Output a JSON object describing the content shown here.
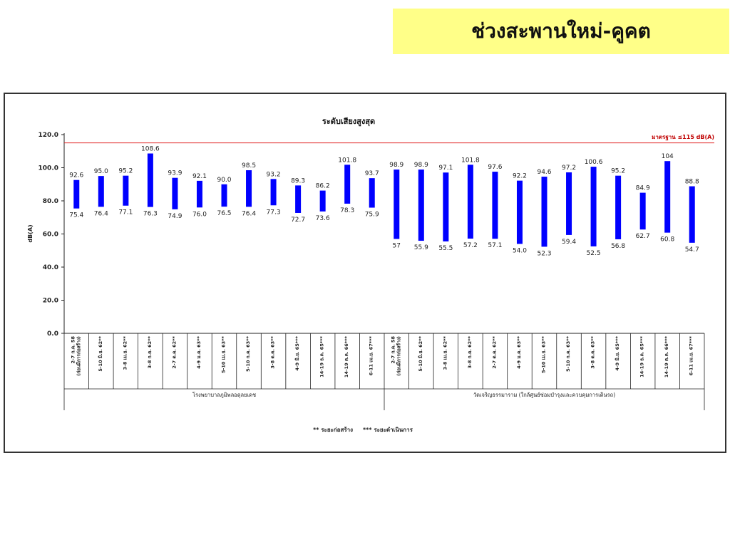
{
  "slide": {
    "title": "ช่วงสะพานใหม่-คูคต"
  },
  "colors": {
    "bar": "#0000ff",
    "standard_line": "#e02020",
    "title_background": "#ffff88"
  },
  "chart_data": {
    "type": "bar",
    "subtype": "floating-range",
    "title": "ระดับเสียงสูงสุด",
    "ylabel": "dB(A)",
    "ylim": [
      0,
      120
    ],
    "yticks": [
      "0.0",
      "20.0",
      "40.0",
      "60.0",
      "80.0",
      "100.0",
      "120.0"
    ],
    "standard": {
      "value": 115,
      "label": "มาตรฐาน ≤115 dB(A)"
    },
    "categories": [
      [
        "2-7 ก.ค. 58",
        "(ก่อนมีการก่อสร้าง)"
      ],
      [
        "5-10 มิ.ย. 62**"
      ],
      [
        "3-8 เม.ย. 62**"
      ],
      [
        "3-8 ก.ค. 62**"
      ],
      [
        "2-7 ต.ค. 62**"
      ],
      [
        "4-9 ม.ค. 63**"
      ],
      [
        "5-10 เม.ย. 63**"
      ],
      [
        "5-10 ก.ค. 63**"
      ],
      [
        "3-8 ต.ค. 63**"
      ],
      [
        "4-9 มิ.ย. 65***"
      ],
      [
        "14-19 ธ.ค. 65***"
      ],
      [
        "14-19 ต.ค. 66***"
      ],
      [
        "6-11 เม.ย. 67***"
      ],
      [
        "2-7 ก.ค. 58",
        "(ก่อนมีการก่อสร้าง)"
      ],
      [
        "5-10 มิ.ย. 62**"
      ],
      [
        "3-8 เม.ย. 62**"
      ],
      [
        "3-8 ก.ค. 62**"
      ],
      [
        "2-7 ต.ค. 62**"
      ],
      [
        "4-9 ม.ค. 63**"
      ],
      [
        "5-10 เม.ย. 63**"
      ],
      [
        "5-10 ก.ค. 63**"
      ],
      [
        "3-8 ต.ค. 63**"
      ],
      [
        "4-9 มิ.ย. 65***"
      ],
      [
        "14-19 ธ.ค. 65***"
      ],
      [
        "14-19 ต.ค. 66***"
      ],
      [
        "6-11 เม.ย. 67***"
      ]
    ],
    "groups": [
      {
        "label": "โรงพยาบาลภูมิพลอดุลยเดช",
        "start": 0,
        "end": 12
      },
      {
        "label": "วัดเจริญธรรมาราม (ใกล้ศูนย์ซ่อมบำรุงและควบคุมการเดินรถ)",
        "start": 13,
        "end": 25
      }
    ],
    "max_values": [
      92.6,
      95.0,
      95.2,
      108.6,
      93.9,
      92.1,
      90.0,
      98.5,
      93.2,
      89.3,
      86.2,
      101.8,
      93.7,
      98.9,
      98.9,
      97.1,
      101.8,
      97.6,
      92.2,
      94.6,
      97.2,
      100.6,
      95.2,
      84.9,
      104,
      88.8
    ],
    "min_values": [
      75.4,
      76.4,
      77.1,
      76.3,
      74.9,
      76.0,
      76.5,
      76.4,
      77.3,
      72.7,
      73.6,
      78.3,
      75.9,
      57,
      55.9,
      55.5,
      57.2,
      57.1,
      54.0,
      52.3,
      59.4,
      52.5,
      56.8,
      62.7,
      60.8,
      54.7
    ],
    "max_labels": [
      "92.6",
      "95.0",
      "95.2",
      "108.6",
      "93.9",
      "92.1",
      "90.0",
      "98.5",
      "93.2",
      "89.3",
      "86.2",
      "101.8",
      "93.7",
      "98.9",
      "98.9",
      "97.1",
      "101.8",
      "97.6",
      "92.2",
      "94.6",
      "97.2",
      "100.6",
      "95.2",
      "84.9",
      "104",
      "88.8"
    ],
    "min_labels": [
      "75.4",
      "76.4",
      "77.1",
      "76.3",
      "74.9",
      "76.0",
      "76.5",
      "76.4",
      "77.3",
      "72.7",
      "73.6",
      "78.3",
      "75.9",
      "57",
      "55.9",
      "55.5",
      "57.2",
      "57.1",
      "54.0",
      "52.3",
      "59.4",
      "52.5",
      "56.8",
      "62.7",
      "60.8",
      "54.7"
    ],
    "footnote": "** ระยะก่อสร้าง     *** ระยะดำเนินการ",
    "grid": false
  }
}
